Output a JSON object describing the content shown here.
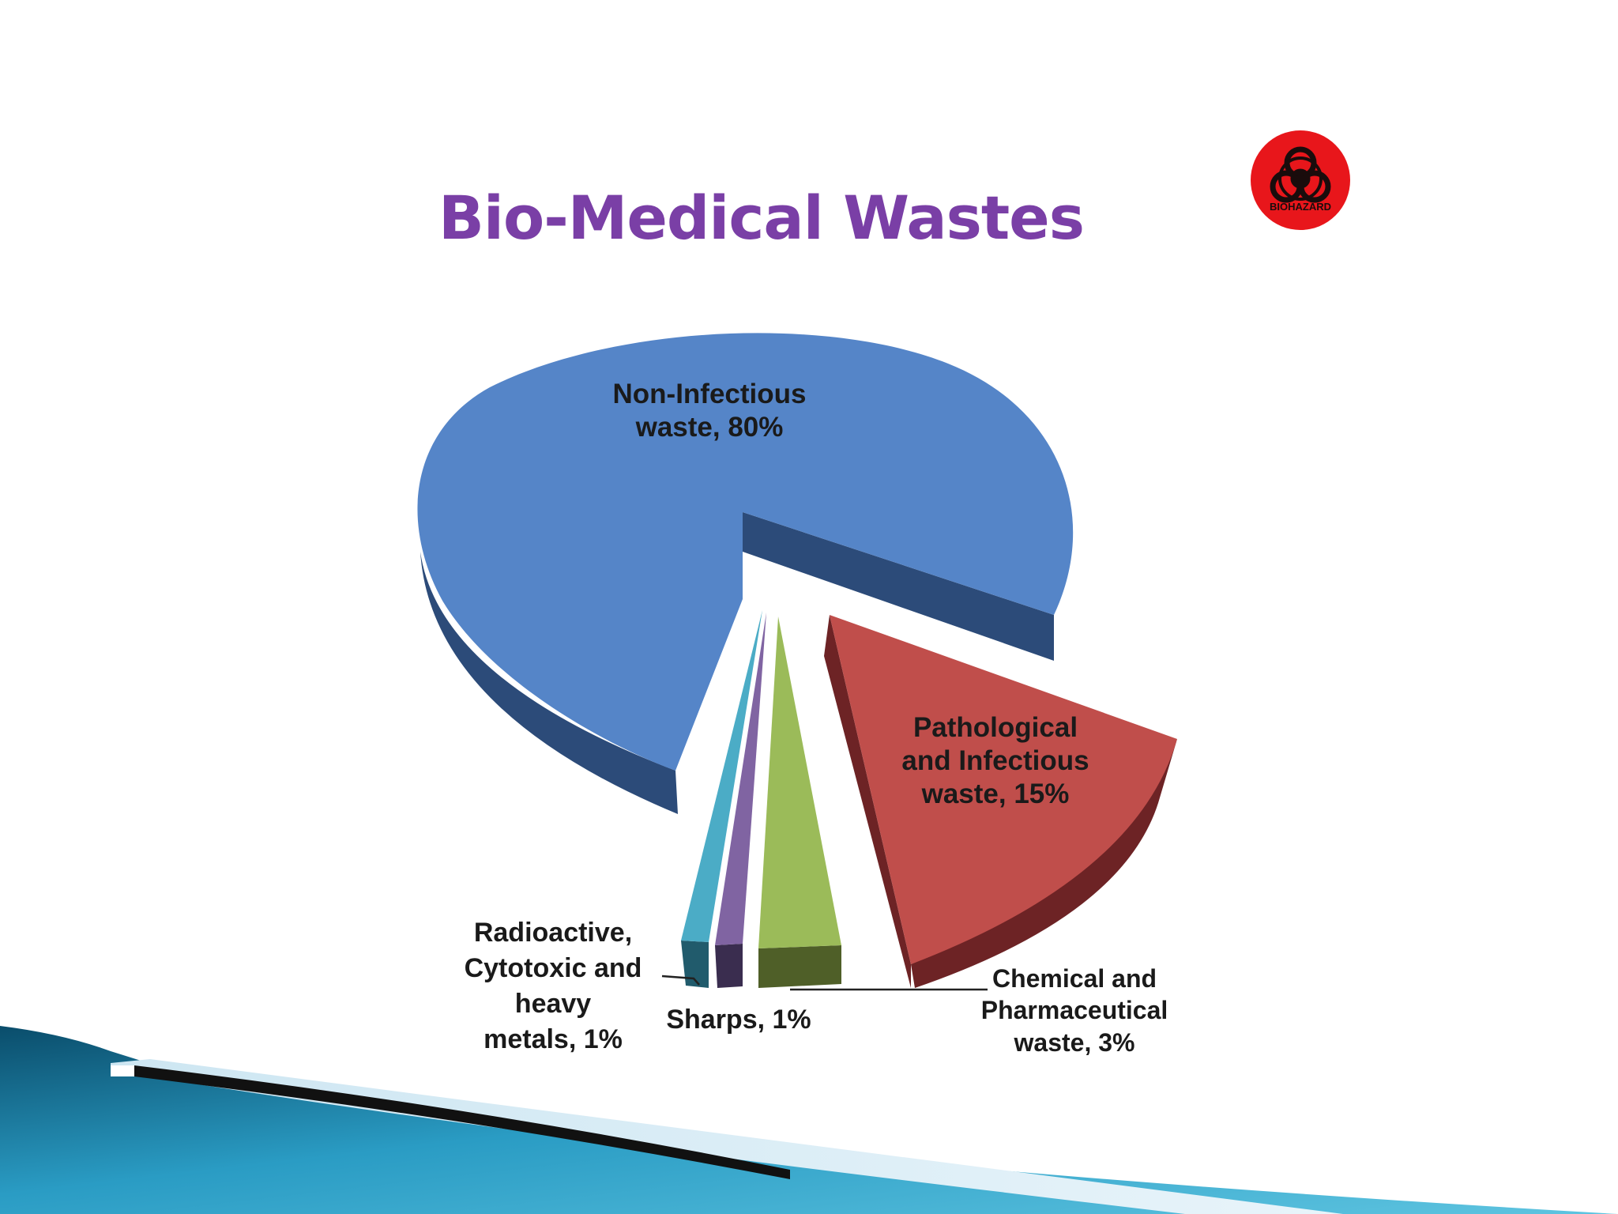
{
  "slide": {
    "title": "Bio-Medical Wastes",
    "title_color": "#7a3fa6",
    "badge_text": "BIOHAZARD",
    "badge_color": "#e8161b"
  },
  "chart_data": {
    "type": "pie",
    "title": "",
    "style": "3d-exploded",
    "slices": [
      {
        "label_lines": [
          "Non-Infectious",
          "waste, 80%"
        ],
        "value": 80,
        "color": "#5585c8",
        "side_color": "#2c4b79"
      },
      {
        "label_lines": [
          "Pathological",
          "and Infectious",
          "waste, 15%"
        ],
        "value": 15,
        "color": "#c04e4b",
        "side_color": "#6d2325"
      },
      {
        "label_lines": [
          "Chemical and",
          "Pharmaceutical",
          "waste, 3%"
        ],
        "value": 3,
        "color": "#9bbb59",
        "side_color": "#4f5f28"
      },
      {
        "label_lines": [
          "Sharps, 1%"
        ],
        "value": 1,
        "color": "#8064a2",
        "side_color": "#3a2d4f"
      },
      {
        "label_lines": [
          "Radioactive,",
          "Cytotoxic and",
          "heavy",
          "metals, 1%"
        ],
        "value": 1,
        "color": "#4bacc6",
        "side_color": "#215b6c"
      }
    ]
  }
}
